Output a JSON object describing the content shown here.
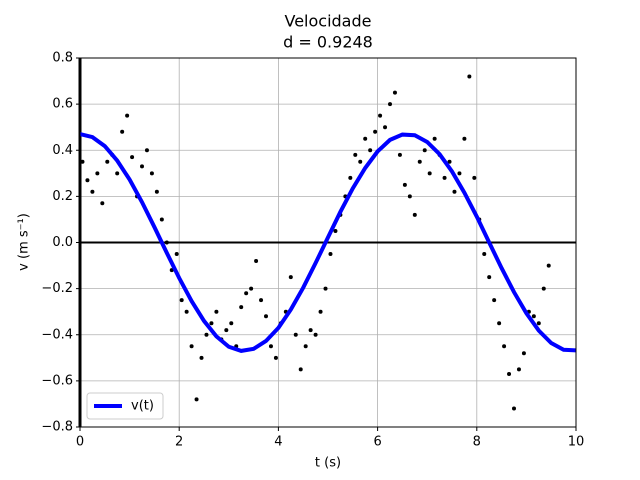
{
  "chart_data": {
    "type": "line",
    "title": "Velocidade",
    "subtitle": "d = 0.9248",
    "x_label": "t (s)",
    "y_label": "v (m s⁻¹)",
    "xlim": [
      0,
      10
    ],
    "ylim": [
      -0.8,
      0.8
    ],
    "xticks": [
      0,
      2,
      4,
      6,
      8,
      10
    ],
    "yticks": [
      {
        "value": -0.8,
        "label": "−0.8"
      },
      {
        "value": -0.6,
        "label": "−0.6"
      },
      {
        "value": -0.4,
        "label": "−0.4"
      },
      {
        "value": -0.2,
        "label": "−0.2"
      },
      {
        "value": 0,
        "label": "0.0"
      },
      {
        "value": 0.2,
        "label": "0.2"
      },
      {
        "value": 0.4,
        "label": "0.4"
      },
      {
        "value": 0.6,
        "label": "0.6"
      },
      {
        "value": 0.8,
        "label": "0.8"
      }
    ],
    "grid": true,
    "axhline": 0,
    "axvline": 0,
    "legend": "lower left",
    "points": {
      "color": "#000000",
      "x": [
        0.05,
        0.15,
        0.25,
        0.35,
        0.45,
        0.55,
        0.65,
        0.75,
        0.85,
        0.95,
        1.05,
        1.15,
        1.25,
        1.35,
        1.45,
        1.55,
        1.65,
        1.75,
        1.85,
        1.95,
        2.05,
        2.15,
        2.25,
        2.35,
        2.45,
        2.55,
        2.65,
        2.75,
        2.85,
        2.95,
        3.05,
        3.15,
        3.25,
        3.35,
        3.45,
        3.55,
        3.65,
        3.75,
        3.85,
        3.95,
        4.05,
        4.15,
        4.25,
        4.35,
        4.45,
        4.55,
        4.65,
        4.75,
        4.85,
        4.95,
        5.05,
        5.15,
        5.25,
        5.35,
        5.45,
        5.55,
        5.65,
        5.75,
        5.85,
        5.95,
        6.05,
        6.15,
        6.25,
        6.35,
        6.45,
        6.55,
        6.65,
        6.75,
        6.85,
        6.95,
        7.05,
        7.15,
        7.25,
        7.35,
        7.45,
        7.55,
        7.65,
        7.75,
        7.85,
        7.95,
        8.05,
        8.15,
        8.25,
        8.35,
        8.45,
        8.55,
        8.65,
        8.75,
        8.85,
        8.95,
        9.05,
        9.15,
        9.25,
        9.35,
        9.45
      ],
      "values": [
        0.35,
        0.27,
        0.22,
        0.3,
        0.17,
        0.35,
        0.38,
        0.3,
        0.48,
        0.55,
        0.37,
        0.2,
        0.33,
        0.4,
        0.3,
        0.22,
        0.1,
        0.0,
        -0.12,
        -0.05,
        -0.25,
        -0.3,
        -0.45,
        -0.68,
        -0.5,
        -0.4,
        -0.35,
        -0.3,
        -0.42,
        -0.38,
        -0.35,
        -0.45,
        -0.28,
        -0.22,
        -0.2,
        -0.08,
        -0.25,
        -0.32,
        -0.45,
        -0.5,
        -0.35,
        -0.3,
        -0.15,
        -0.4,
        -0.55,
        -0.45,
        -0.38,
        -0.4,
        -0.3,
        -0.2,
        -0.05,
        0.05,
        0.12,
        0.2,
        0.28,
        0.38,
        0.35,
        0.45,
        0.4,
        0.48,
        0.55,
        0.5,
        0.6,
        0.65,
        0.38,
        0.25,
        0.2,
        0.12,
        0.35,
        0.4,
        0.3,
        0.45,
        0.38,
        0.28,
        0.35,
        0.22,
        0.3,
        0.45,
        0.72,
        0.28,
        0.1,
        -0.05,
        -0.15,
        -0.25,
        -0.35,
        -0.45,
        -0.57,
        -0.72,
        -0.55,
        -0.48,
        -0.3,
        -0.32,
        -0.35,
        -0.2,
        -0.1
      ]
    },
    "x": [
      0,
      0.25,
      0.5,
      0.75,
      1,
      1.25,
      1.5,
      1.75,
      2,
      2.25,
      2.5,
      2.75,
      3,
      3.25,
      3.5,
      3.75,
      4,
      4.25,
      4.5,
      4.75,
      5,
      5.25,
      5.5,
      5.75,
      6,
      6.25,
      6.5,
      6.75,
      7,
      7.25,
      7.5,
      7.75,
      8,
      8.25,
      8.5,
      8.75,
      9,
      9.25,
      9.5,
      9.75,
      10
    ],
    "series": [
      {
        "name": "v(t)",
        "color": "#0000ff",
        "values": [
          0.47,
          0.457,
          0.418,
          0.355,
          0.273,
          0.175,
          0.067,
          -0.045,
          -0.154,
          -0.254,
          -0.34,
          -0.407,
          -0.452,
          -0.47,
          -0.461,
          -0.427,
          -0.37,
          -0.291,
          -0.196,
          -0.089,
          0.022,
          0.133,
          0.235,
          0.323,
          0.395,
          0.445,
          0.468,
          0.465,
          0.436,
          0.383,
          0.308,
          0.216,
          0.112,
          0.0,
          -0.111,
          -0.215,
          -0.307,
          -0.382,
          -0.436,
          -0.465,
          -0.468
        ]
      }
    ]
  }
}
